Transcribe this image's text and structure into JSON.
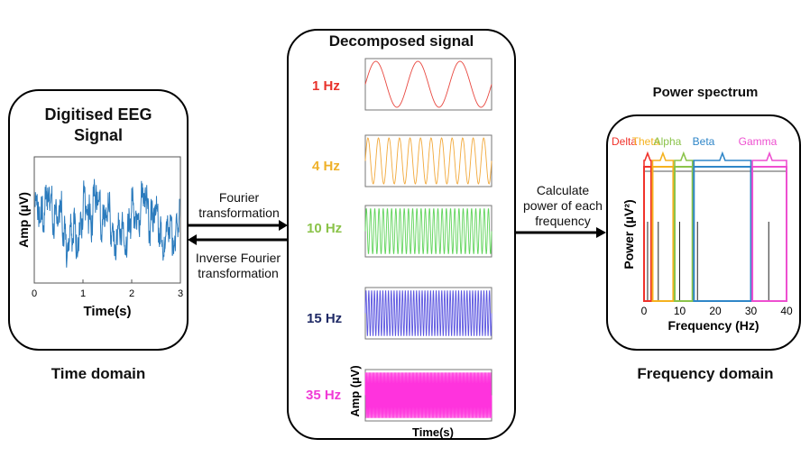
{
  "left_panel": {
    "title_line1": "Digitised EEG",
    "title_line2": "Signal",
    "ylabel": "Amp (µV)",
    "xlabel": "Time(s)",
    "xticks": [
      "0",
      "1",
      "2",
      "3"
    ],
    "caption": "Time domain"
  },
  "arrows": {
    "forward_line1": "Fourier",
    "forward_line2": "transformation",
    "inverse_line1": "Inverse Fourier",
    "inverse_line2": "transformation",
    "power_line1": "Calculate",
    "power_line2": "power of each",
    "power_line3": "frequency"
  },
  "middle_panel": {
    "title": "Decomposed signal",
    "ylabel": "Amp (µV)",
    "xlabel": "Time(s)",
    "components": [
      {
        "label": "1 Hz",
        "cycles": 3,
        "color": "#e8473f",
        "label_color": "#e8322b"
      },
      {
        "label": "4 Hz",
        "cycles": 12,
        "color": "#f2a93b",
        "label_color": "#efb12a"
      },
      {
        "label": "10 Hz",
        "cycles": 30,
        "color": "#5fd45a",
        "label_color": "#8bc34a"
      },
      {
        "label": "15 Hz",
        "cycles": 45,
        "color": "#5b55e0",
        "label_color": "#1f2a66"
      },
      {
        "label": "35 Hz",
        "cycles": 105,
        "color": "#ff33dd",
        "label_color": "#f03bd6"
      }
    ]
  },
  "right_panel": {
    "title": "Power spectrum",
    "ylabel": "Power (µV²)",
    "xlabel": "Frequency (Hz)",
    "xticks": [
      "0",
      "10",
      "20",
      "30",
      "40"
    ],
    "caption": "Frequency domain",
    "bands": [
      {
        "name": "Delta",
        "color": "#f0322b"
      },
      {
        "name": "Theta",
        "color": "#f5b21f"
      },
      {
        "name": "Alpha",
        "color": "#8bc34a"
      },
      {
        "name": "Beta",
        "color": "#2f86c8"
      },
      {
        "name": "Gamma",
        "color": "#ee4fd0"
      }
    ]
  }
}
